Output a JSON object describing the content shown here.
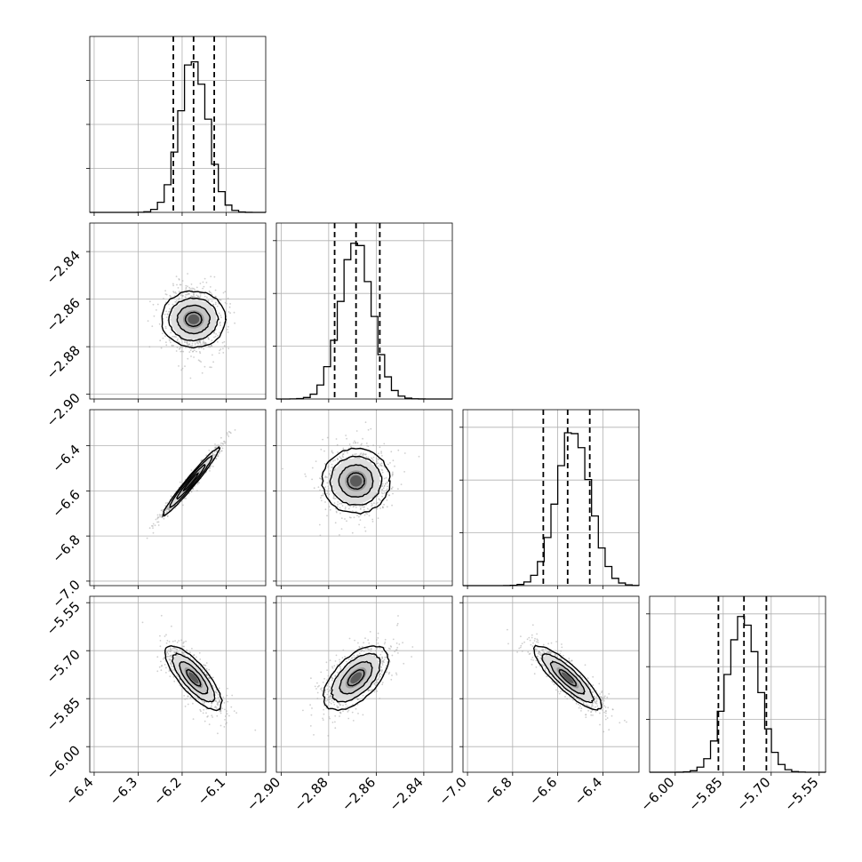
{
  "chart_data": {
    "type": "corner",
    "title": "",
    "grid": true,
    "params": [
      {
        "range": [
          -6.41,
          -6.01
        ],
        "ticks": [
          -6.4,
          -6.3,
          -6.2,
          -6.1
        ],
        "tick_labels": [
          "−6.4",
          "−6.3",
          "−6.2",
          "−6.1"
        ],
        "quantiles": [
          -6.22,
          -6.174,
          -6.127
        ],
        "hist_mode": -6.174,
        "hist_width": 0.032,
        "hist_scale": 0.115,
        "hist_bins": 26,
        "hist_ticks": [
          0.25,
          0.5,
          0.75
        ]
      },
      {
        "range": [
          -2.902,
          -2.828
        ],
        "ticks": [
          -2.9,
          -2.88,
          -2.86,
          -2.84
        ],
        "tick_labels": [
          "−2.90",
          "−2.88",
          "−2.86",
          "−2.84"
        ],
        "quantiles": [
          -2.8775,
          -2.8685,
          -2.8585
        ],
        "hist_mode": -2.8685,
        "hist_width": 0.0068,
        "hist_scale": 0.115,
        "hist_bins": 26,
        "hist_ticks": [
          0.3,
          0.6,
          0.9
        ]
      },
      {
        "range": [
          -7.02,
          -6.24
        ],
        "ticks": [
          -7.0,
          -6.8,
          -6.6,
          -6.4
        ],
        "tick_labels": [
          "−7.0",
          "−6.8",
          "−6.6",
          "−6.4"
        ],
        "quantiles": [
          -6.664,
          -6.556,
          -6.458
        ],
        "hist_mode": -6.53,
        "hist_width": 0.075,
        "hist_scale": 0.115,
        "hist_bins": 26,
        "hist_ticks": [
          0.3,
          0.6,
          0.9
        ]
      },
      {
        "range": [
          -6.08,
          -5.53
        ],
        "ticks": [
          -6.0,
          -5.85,
          -5.7,
          -5.55
        ],
        "tick_labels": [
          "−6.00",
          "−5.85",
          "−5.70",
          "−5.55"
        ],
        "quantiles": [
          -5.865,
          -5.785,
          -5.715
        ],
        "hist_mode": -5.79,
        "hist_width": 0.05,
        "hist_scale": 0.115,
        "hist_bins": 26,
        "hist_ticks": [
          0.3,
          0.6,
          0.9
        ]
      }
    ],
    "pairs": [
      {
        "x": 0,
        "y": 1,
        "center": [
          -6.174,
          -2.8685
        ],
        "rho": 0.0,
        "clip": false
      },
      {
        "x": 0,
        "y": 2,
        "center": [
          -6.18,
          -6.56
        ],
        "rho": 0.975,
        "clip": false
      },
      {
        "x": 1,
        "y": 2,
        "center": [
          -2.8685,
          -6.556
        ],
        "rho": 0.0,
        "clip": false
      },
      {
        "x": 0,
        "y": 3,
        "center": [
          -6.174,
          -5.785
        ],
        "rho": -0.78,
        "clip": false
      },
      {
        "x": 1,
        "y": 3,
        "center": [
          -2.8685,
          -5.785
        ],
        "rho": 0.58,
        "clip": true
      },
      {
        "x": 2,
        "y": 3,
        "center": [
          -6.556,
          -5.785
        ],
        "rho": -0.86,
        "clip": false
      }
    ],
    "contour_sigma_levels": [
      0.5,
      1.0,
      1.5,
      2.0
    ],
    "colors": {
      "line": "#000000",
      "grid": "#b0b0b0",
      "points": "#a8a8a8"
    }
  }
}
